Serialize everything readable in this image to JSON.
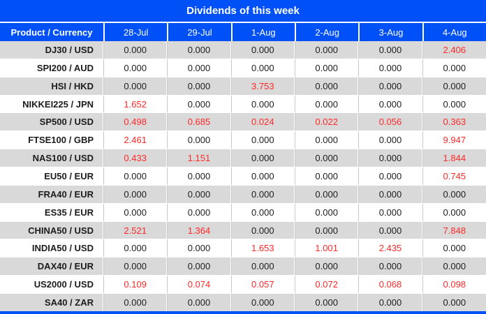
{
  "title": "Dividends of this week",
  "colors": {
    "header_blue": "#0050f8",
    "dividend_red": "#ff2828",
    "alt_row_gray": "#d9d9d9",
    "divider_gray": "#c9c9c9",
    "text_dark": "#1c1c1c",
    "header_text": "#ffffff"
  },
  "chart_data": {
    "type": "table",
    "title": "Dividends of this week",
    "columns": [
      "Product / Currency",
      "28-Jul",
      "29-Jul",
      "1-Aug",
      "2-Aug",
      "3-Aug",
      "4-Aug"
    ],
    "rows": [
      {
        "label": "DJ30 / USD",
        "values": [
          "0.000",
          "0.000",
          "0.000",
          "0.000",
          "0.000",
          "2.406"
        ]
      },
      {
        "label": "SPI200 / AUD",
        "values": [
          "0.000",
          "0.000",
          "0.000",
          "0.000",
          "0.000",
          "0.000"
        ]
      },
      {
        "label": "HSI / HKD",
        "values": [
          "0.000",
          "0.000",
          "3.753",
          "0.000",
          "0.000",
          "0.000"
        ]
      },
      {
        "label": "NIKKEI225 / JPN",
        "values": [
          "1.652",
          "0.000",
          "0.000",
          "0.000",
          "0.000",
          "0.000"
        ]
      },
      {
        "label": "SP500 / USD",
        "values": [
          "0.498",
          "0.685",
          "0.024",
          "0.022",
          "0.056",
          "0.363"
        ]
      },
      {
        "label": "FTSE100 / GBP",
        "values": [
          "2.461",
          "0.000",
          "0.000",
          "0.000",
          "0.000",
          "9.947"
        ]
      },
      {
        "label": "NAS100 / USD",
        "values": [
          "0.433",
          "1.151",
          "0.000",
          "0.000",
          "0.000",
          "1.844"
        ]
      },
      {
        "label": "EU50 / EUR",
        "values": [
          "0.000",
          "0.000",
          "0.000",
          "0.000",
          "0.000",
          "0.745"
        ]
      },
      {
        "label": "FRA40 / EUR",
        "values": [
          "0.000",
          "0.000",
          "0.000",
          "0.000",
          "0.000",
          "0.000"
        ]
      },
      {
        "label": "ES35 / EUR",
        "values": [
          "0.000",
          "0.000",
          "0.000",
          "0.000",
          "0.000",
          "0.000"
        ]
      },
      {
        "label": "CHINA50 / USD",
        "values": [
          "2.521",
          "1.364",
          "0.000",
          "0.000",
          "0.000",
          "7.848"
        ]
      },
      {
        "label": "INDIA50 / USD",
        "values": [
          "0.000",
          "0.000",
          "1.653",
          "1.001",
          "2.435",
          "0.000"
        ]
      },
      {
        "label": "DAX40 / EUR",
        "values": [
          "0.000",
          "0.000",
          "0.000",
          "0.000",
          "0.000",
          "0.000"
        ]
      },
      {
        "label": "US2000 / USD",
        "values": [
          "0.109",
          "0.074",
          "0.057",
          "0.072",
          "0.068",
          "0.098"
        ]
      },
      {
        "label": "SA40 / ZAR",
        "values": [
          "0.000",
          "0.000",
          "0.000",
          "0.000",
          "0.000",
          "0.000"
        ]
      }
    ],
    "highlight_rule": "values greater than zero are shown in red"
  }
}
